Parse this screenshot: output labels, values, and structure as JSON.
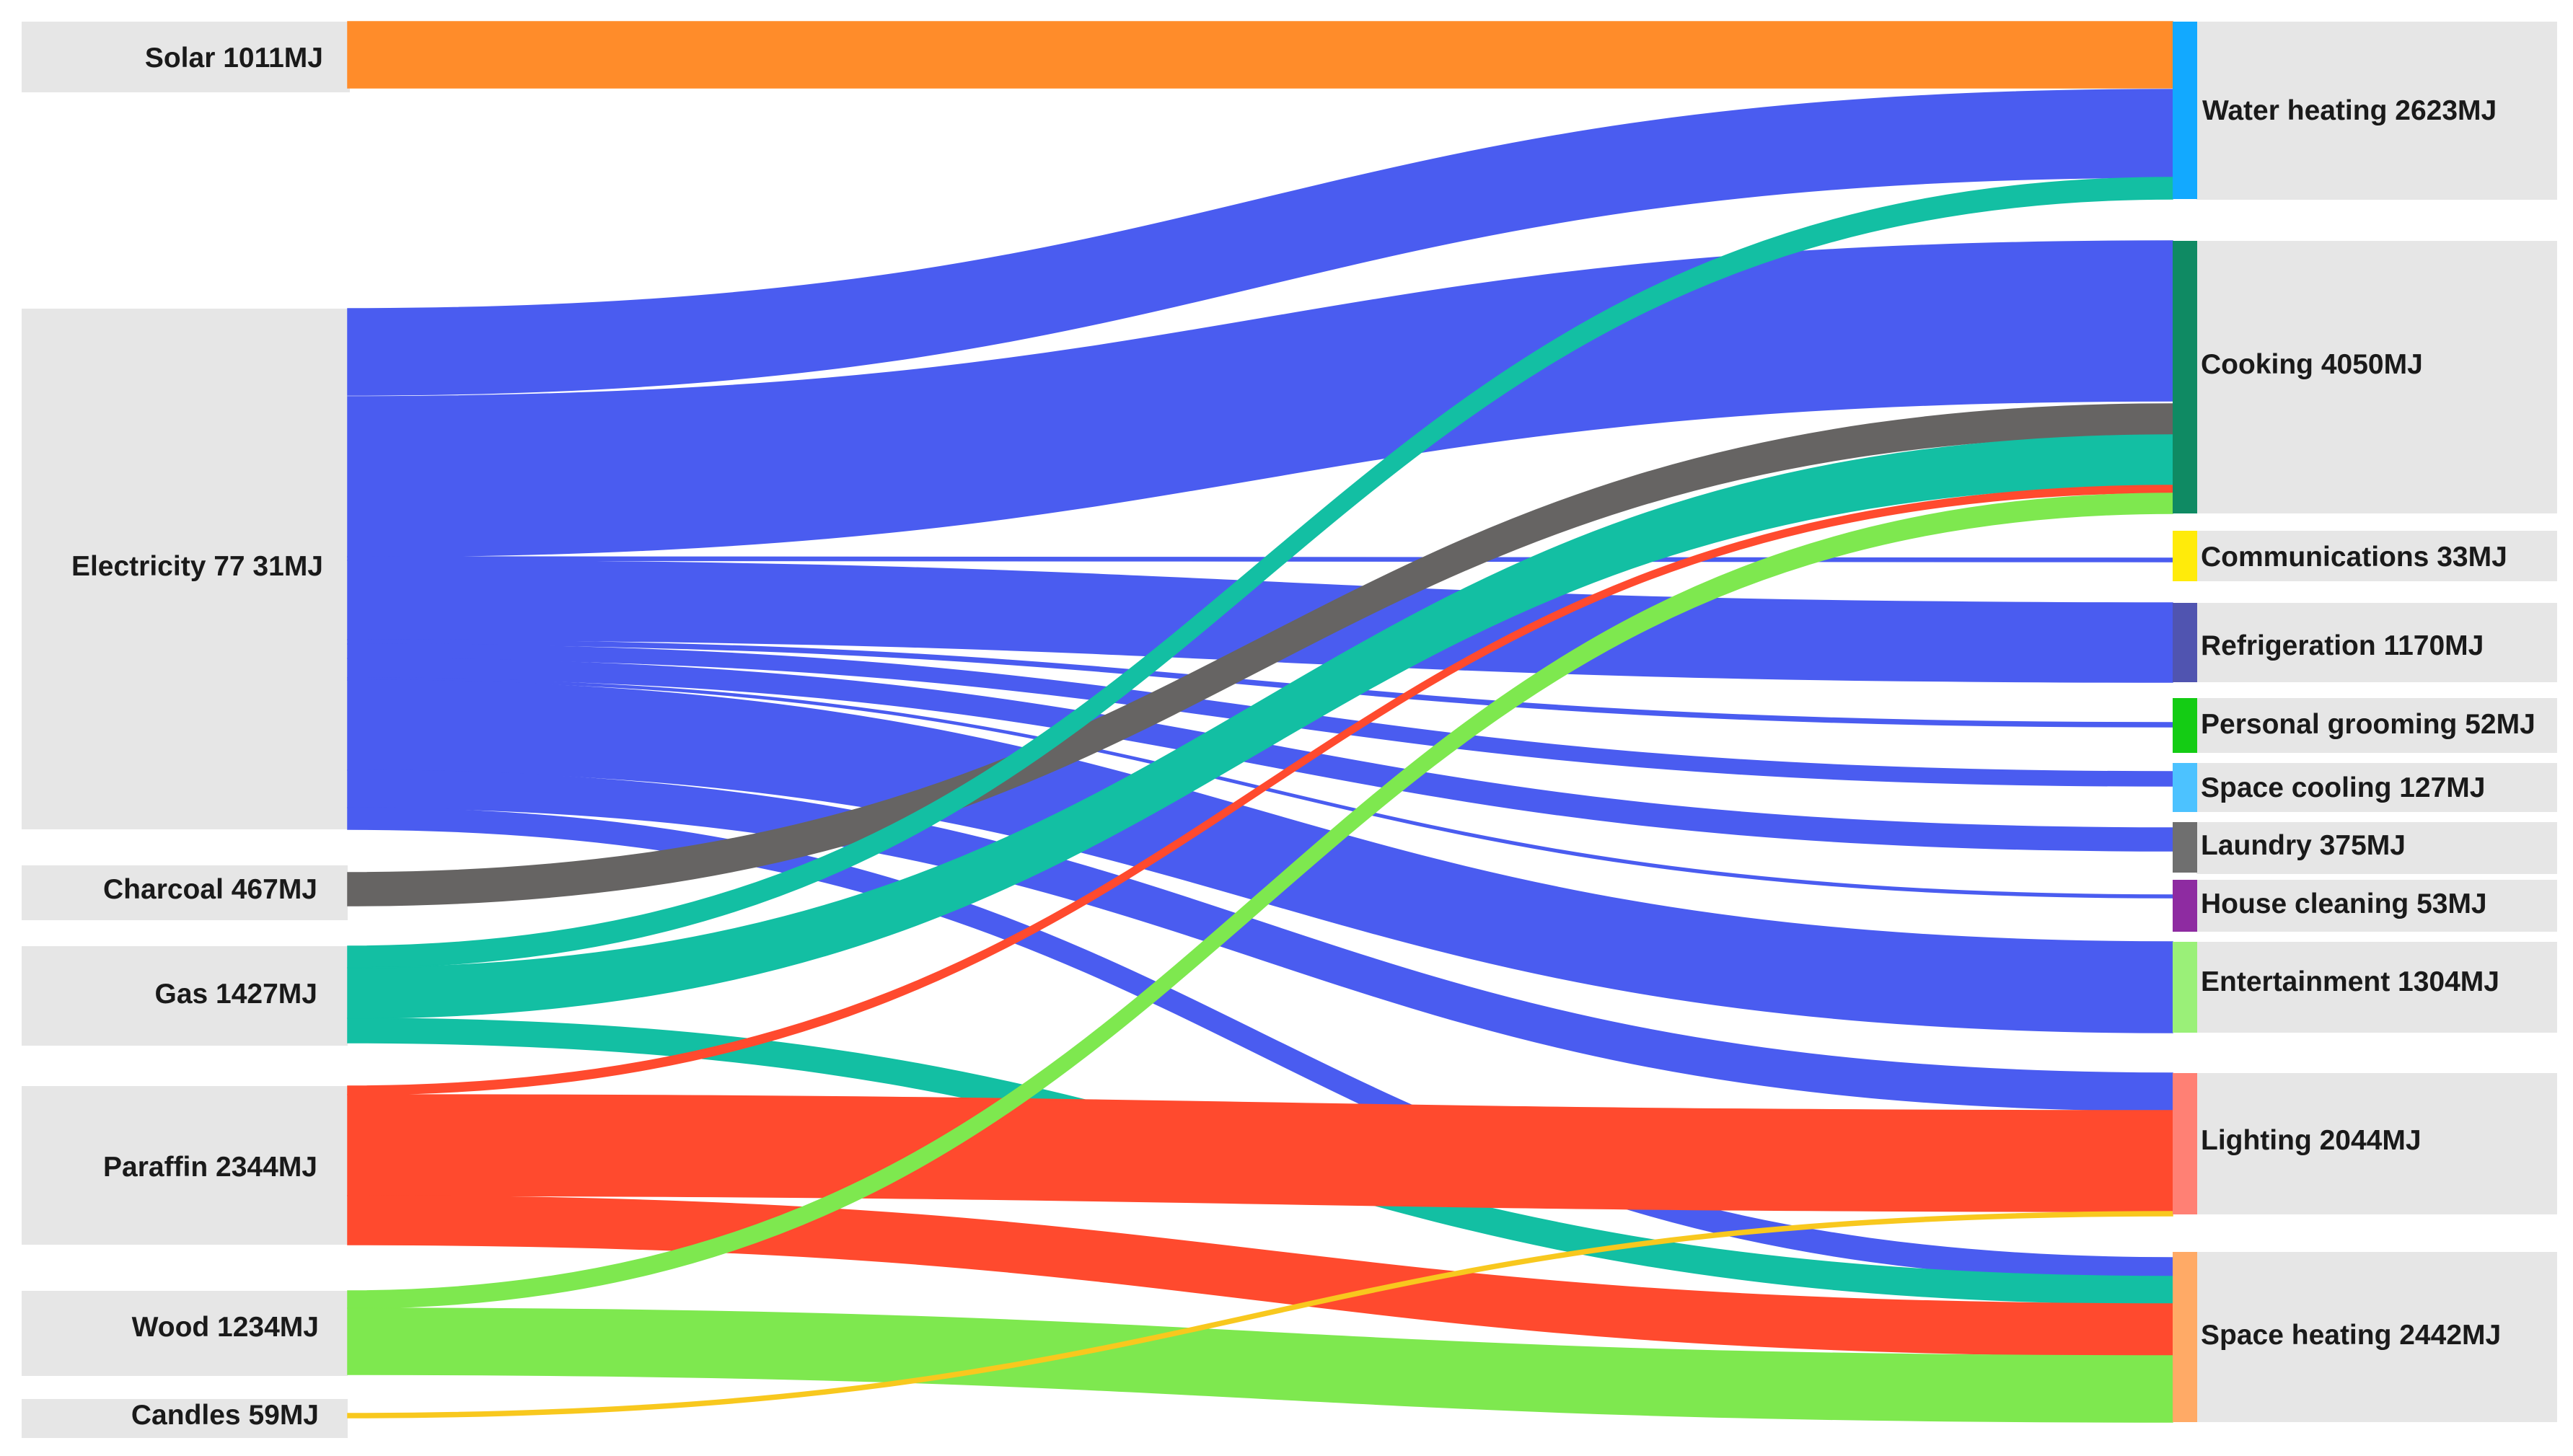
{
  "diagram": {
    "type": "sankey",
    "sources": [
      {
        "id": "solar",
        "label": "Solar 1011MJ",
        "value": 1011,
        "color": "#ff8c2a"
      },
      {
        "id": "electricity",
        "label": "Electricity 77 31MJ",
        "value": 7731,
        "color": "#4a5cf0"
      },
      {
        "id": "charcoal",
        "label": "Charcoal 467MJ",
        "value": 467,
        "color": "#666463"
      },
      {
        "id": "gas",
        "label": "Gas  1427MJ",
        "value": 1427,
        "color": "#13bfa3"
      },
      {
        "id": "paraffin",
        "label": "Paraffin 2344MJ",
        "value": 2344,
        "color": "#ff4a2e"
      },
      {
        "id": "wood",
        "label": "Wood 1234MJ",
        "value": 1234,
        "color": "#7ee84f"
      },
      {
        "id": "candles",
        "label": "Candles 59MJ",
        "value": 59,
        "color": "#f8c81e"
      }
    ],
    "targets": [
      {
        "id": "water_heating",
        "label": "Water heating  2623MJ",
        "value": 2623,
        "color": "#12a9ff"
      },
      {
        "id": "cooking",
        "label": "Cooking  4050MJ",
        "value": 4050,
        "color": "#0f8a63"
      },
      {
        "id": "communications",
        "label": "Communications  33MJ",
        "value": 33,
        "color": "#ffeb0a"
      },
      {
        "id": "refrigeration",
        "label": "Refrigeration  1170MJ",
        "value": 1170,
        "color": "#5054b0"
      },
      {
        "id": "personal_grooming",
        "label": "Personal grooming  52MJ",
        "value": 52,
        "color": "#14cc14"
      },
      {
        "id": "space_cooling",
        "label": "Space cooling 127MJ",
        "value": 127,
        "color": "#4cc2ff"
      },
      {
        "id": "laundry",
        "label": "Laundry 375MJ",
        "value": 375,
        "color": "#6f6f6f"
      },
      {
        "id": "house_cleaning",
        "label": "House cleaning 53MJ",
        "value": 53,
        "color": "#8e2ba1"
      },
      {
        "id": "entertainment",
        "label": "Entertainment 1304MJ",
        "value": 1304,
        "color": "#9af078"
      },
      {
        "id": "lighting",
        "label": "Lighting 2044MJ",
        "value": 2044,
        "color": "#ff8074"
      },
      {
        "id": "space_heating",
        "label": "Space heating 2442MJ",
        "value": 2442,
        "color": "#ffaa66"
      }
    ],
    "flows": [
      {
        "from": "solar",
        "to": "water_heating"
      },
      {
        "from": "electricity",
        "to": "water_heating"
      },
      {
        "from": "electricity",
        "to": "cooking"
      },
      {
        "from": "electricity",
        "to": "communications"
      },
      {
        "from": "electricity",
        "to": "refrigeration"
      },
      {
        "from": "electricity",
        "to": "personal_grooming"
      },
      {
        "from": "electricity",
        "to": "space_cooling"
      },
      {
        "from": "electricity",
        "to": "laundry"
      },
      {
        "from": "electricity",
        "to": "house_cleaning"
      },
      {
        "from": "electricity",
        "to": "entertainment"
      },
      {
        "from": "electricity",
        "to": "lighting"
      },
      {
        "from": "electricity",
        "to": "space_heating"
      },
      {
        "from": "charcoal",
        "to": "cooking"
      },
      {
        "from": "gas",
        "to": "water_heating"
      },
      {
        "from": "gas",
        "to": "cooking"
      },
      {
        "from": "gas",
        "to": "space_heating"
      },
      {
        "from": "paraffin",
        "to": "cooking"
      },
      {
        "from": "paraffin",
        "to": "lighting"
      },
      {
        "from": "paraffin",
        "to": "space_heating"
      },
      {
        "from": "wood",
        "to": "cooking"
      },
      {
        "from": "wood",
        "to": "space_heating"
      },
      {
        "from": "candles",
        "to": "lighting"
      }
    ]
  }
}
